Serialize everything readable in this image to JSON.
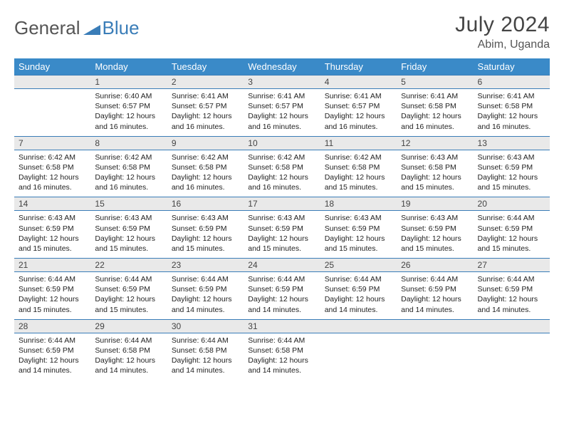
{
  "logo": {
    "text1": "General",
    "text2": "Blue"
  },
  "title": "July 2024",
  "location": "Abim, Uganda",
  "colors": {
    "header_bg": "#3a8ac8",
    "header_text": "#ffffff",
    "daynum_bg": "#e9e9e9",
    "rule": "#3a7db8",
    "body_text": "#222222"
  },
  "days_of_week": [
    "Sunday",
    "Monday",
    "Tuesday",
    "Wednesday",
    "Thursday",
    "Friday",
    "Saturday"
  ],
  "weeks": [
    {
      "nums": [
        "",
        "1",
        "2",
        "3",
        "4",
        "5",
        "6"
      ],
      "cells": [
        "",
        "Sunrise: 6:40 AM\nSunset: 6:57 PM\nDaylight: 12 hours and 16 minutes.",
        "Sunrise: 6:41 AM\nSunset: 6:57 PM\nDaylight: 12 hours and 16 minutes.",
        "Sunrise: 6:41 AM\nSunset: 6:57 PM\nDaylight: 12 hours and 16 minutes.",
        "Sunrise: 6:41 AM\nSunset: 6:57 PM\nDaylight: 12 hours and 16 minutes.",
        "Sunrise: 6:41 AM\nSunset: 6:58 PM\nDaylight: 12 hours and 16 minutes.",
        "Sunrise: 6:41 AM\nSunset: 6:58 PM\nDaylight: 12 hours and 16 minutes."
      ]
    },
    {
      "nums": [
        "7",
        "8",
        "9",
        "10",
        "11",
        "12",
        "13"
      ],
      "cells": [
        "Sunrise: 6:42 AM\nSunset: 6:58 PM\nDaylight: 12 hours and 16 minutes.",
        "Sunrise: 6:42 AM\nSunset: 6:58 PM\nDaylight: 12 hours and 16 minutes.",
        "Sunrise: 6:42 AM\nSunset: 6:58 PM\nDaylight: 12 hours and 16 minutes.",
        "Sunrise: 6:42 AM\nSunset: 6:58 PM\nDaylight: 12 hours and 16 minutes.",
        "Sunrise: 6:42 AM\nSunset: 6:58 PM\nDaylight: 12 hours and 15 minutes.",
        "Sunrise: 6:43 AM\nSunset: 6:58 PM\nDaylight: 12 hours and 15 minutes.",
        "Sunrise: 6:43 AM\nSunset: 6:59 PM\nDaylight: 12 hours and 15 minutes."
      ]
    },
    {
      "nums": [
        "14",
        "15",
        "16",
        "17",
        "18",
        "19",
        "20"
      ],
      "cells": [
        "Sunrise: 6:43 AM\nSunset: 6:59 PM\nDaylight: 12 hours and 15 minutes.",
        "Sunrise: 6:43 AM\nSunset: 6:59 PM\nDaylight: 12 hours and 15 minutes.",
        "Sunrise: 6:43 AM\nSunset: 6:59 PM\nDaylight: 12 hours and 15 minutes.",
        "Sunrise: 6:43 AM\nSunset: 6:59 PM\nDaylight: 12 hours and 15 minutes.",
        "Sunrise: 6:43 AM\nSunset: 6:59 PM\nDaylight: 12 hours and 15 minutes.",
        "Sunrise: 6:43 AM\nSunset: 6:59 PM\nDaylight: 12 hours and 15 minutes.",
        "Sunrise: 6:44 AM\nSunset: 6:59 PM\nDaylight: 12 hours and 15 minutes."
      ]
    },
    {
      "nums": [
        "21",
        "22",
        "23",
        "24",
        "25",
        "26",
        "27"
      ],
      "cells": [
        "Sunrise: 6:44 AM\nSunset: 6:59 PM\nDaylight: 12 hours and 15 minutes.",
        "Sunrise: 6:44 AM\nSunset: 6:59 PM\nDaylight: 12 hours and 15 minutes.",
        "Sunrise: 6:44 AM\nSunset: 6:59 PM\nDaylight: 12 hours and 14 minutes.",
        "Sunrise: 6:44 AM\nSunset: 6:59 PM\nDaylight: 12 hours and 14 minutes.",
        "Sunrise: 6:44 AM\nSunset: 6:59 PM\nDaylight: 12 hours and 14 minutes.",
        "Sunrise: 6:44 AM\nSunset: 6:59 PM\nDaylight: 12 hours and 14 minutes.",
        "Sunrise: 6:44 AM\nSunset: 6:59 PM\nDaylight: 12 hours and 14 minutes."
      ]
    },
    {
      "nums": [
        "28",
        "29",
        "30",
        "31",
        "",
        "",
        ""
      ],
      "cells": [
        "Sunrise: 6:44 AM\nSunset: 6:59 PM\nDaylight: 12 hours and 14 minutes.",
        "Sunrise: 6:44 AM\nSunset: 6:58 PM\nDaylight: 12 hours and 14 minutes.",
        "Sunrise: 6:44 AM\nSunset: 6:58 PM\nDaylight: 12 hours and 14 minutes.",
        "Sunrise: 6:44 AM\nSunset: 6:58 PM\nDaylight: 12 hours and 14 minutes.",
        "",
        "",
        ""
      ]
    }
  ]
}
